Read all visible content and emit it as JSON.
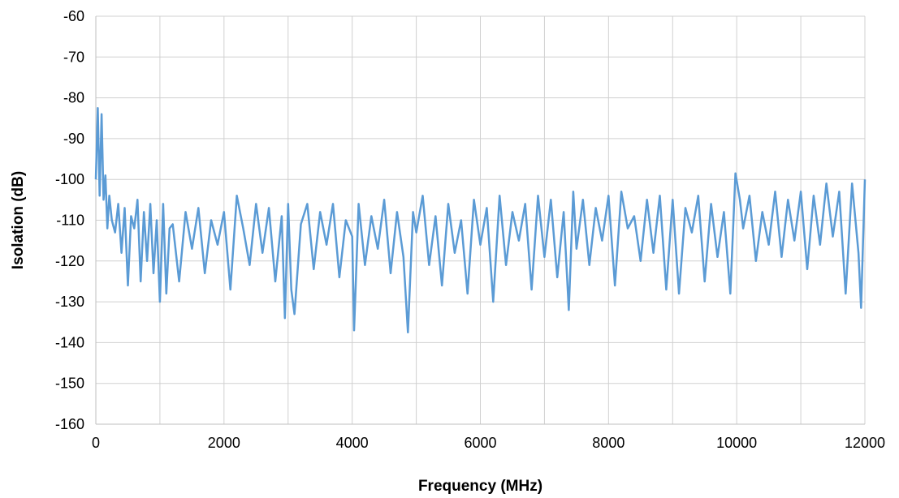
{
  "chart_data": {
    "type": "line",
    "title": "",
    "xlabel": "Frequency (MHz)",
    "ylabel": "Isolation (dB)",
    "xlim": [
      0,
      12000
    ],
    "ylim": [
      -160,
      -60
    ],
    "x_ticks": [
      0,
      2000,
      4000,
      6000,
      8000,
      10000,
      12000
    ],
    "y_ticks": [
      -60,
      -70,
      -80,
      -90,
      -100,
      -110,
      -120,
      -130,
      -140,
      -150,
      -160
    ],
    "grid": true,
    "legend": "none",
    "series": [
      {
        "color": "#5B9BD5",
        "x": [
          0,
          30,
          60,
          90,
          120,
          150,
          180,
          210,
          250,
          300,
          350,
          400,
          450,
          500,
          550,
          600,
          650,
          700,
          750,
          800,
          850,
          900,
          950,
          1000,
          1050,
          1100,
          1150,
          1200,
          1300,
          1400,
          1500,
          1600,
          1700,
          1800,
          1900,
          2000,
          2100,
          2200,
          2300,
          2400,
          2500,
          2600,
          2700,
          2800,
          2900,
          2950,
          3000,
          3050,
          3100,
          3200,
          3300,
          3400,
          3500,
          3600,
          3700,
          3800,
          3900,
          4000,
          4030,
          4100,
          4200,
          4300,
          4400,
          4500,
          4600,
          4700,
          4800,
          4870,
          4950,
          5000,
          5100,
          5200,
          5300,
          5400,
          5500,
          5600,
          5700,
          5800,
          5900,
          6000,
          6100,
          6200,
          6300,
          6400,
          6500,
          6600,
          6700,
          6800,
          6900,
          7000,
          7100,
          7200,
          7300,
          7380,
          7450,
          7500,
          7600,
          7700,
          7800,
          7900,
          8000,
          8100,
          8200,
          8300,
          8400,
          8500,
          8600,
          8700,
          8800,
          8900,
          9000,
          9100,
          9200,
          9300,
          9400,
          9500,
          9600,
          9700,
          9800,
          9900,
          9980,
          10050,
          10100,
          10200,
          10300,
          10400,
          10500,
          10600,
          10700,
          10800,
          10900,
          11000,
          11100,
          11200,
          11300,
          11400,
          11500,
          11600,
          11700,
          11800,
          11900,
          11940,
          12000
        ],
        "y": [
          -100,
          -82.5,
          -104,
          -84,
          -105,
          -99,
          -112,
          -104,
          -110,
          -113,
          -106,
          -118,
          -107,
          -126,
          -109,
          -112,
          -105,
          -125,
          -108,
          -120,
          -106,
          -123,
          -110,
          -130,
          -106,
          -128,
          -112,
          -111,
          -125,
          -108,
          -117,
          -107,
          -123,
          -110,
          -116,
          -108,
          -127,
          -104,
          -112,
          -121,
          -106,
          -118,
          -107,
          -125,
          -109,
          -134,
          -106,
          -127,
          -133,
          -111,
          -106,
          -122,
          -108,
          -116,
          -106,
          -124,
          -110,
          -114,
          -137,
          -106,
          -121,
          -109,
          -117,
          -105,
          -123,
          -108,
          -119,
          -137.5,
          -108,
          -113,
          -104,
          -121,
          -109,
          -126,
          -106,
          -118,
          -110,
          -128,
          -105,
          -116,
          -107,
          -130,
          -104,
          -121,
          -108,
          -115,
          -106,
          -127,
          -104,
          -119,
          -105,
          -124,
          -108,
          -132,
          -103,
          -117,
          -105,
          -121,
          -107,
          -115,
          -104,
          -126,
          -103,
          -112,
          -109,
          -120,
          -105,
          -118,
          -104,
          -127,
          -105,
          -128,
          -107,
          -113,
          -104,
          -125,
          -106,
          -119,
          -108,
          -128,
          -98.5,
          -105,
          -112,
          -104,
          -120,
          -108,
          -116,
          -103,
          -119,
          -105,
          -115,
          -103,
          -122,
          -104,
          -116,
          -101,
          -114,
          -103,
          -128,
          -101,
          -118,
          -131.5,
          -100
        ]
      }
    ]
  }
}
